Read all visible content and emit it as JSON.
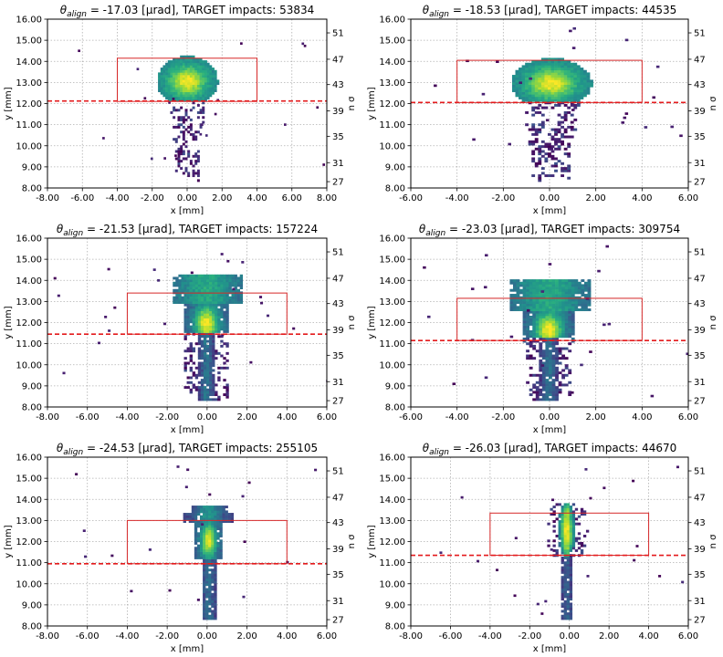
{
  "chart_data": [
    {
      "type": "heatmap",
      "title": {
        "prefix": "θ",
        "subscript": "align",
        "text": " =  -17.03 [μrad],    TARGET impacts: 53834"
      },
      "xlabel": "x [mm]",
      "ylabel": "y [mm]",
      "y2label": "n σ",
      "xlim": [
        -8,
        8
      ],
      "ylim": [
        8,
        16
      ],
      "xticks": [
        -8,
        -6,
        -4,
        -2,
        0,
        2,
        4,
        6,
        8
      ],
      "xticklabels": [
        "-8.00",
        "-6.00",
        "-4.00",
        "-2.00",
        "0.00",
        "2.00",
        "4.00",
        "6.00",
        "8.00"
      ],
      "yticks": [
        8,
        9,
        10,
        11,
        12,
        13,
        14,
        15,
        16
      ],
      "yticklabels": [
        "8.00",
        "9.00",
        "10.00",
        "11.00",
        "12.00",
        "13.00",
        "14.00",
        "15.00",
        "16.00"
      ],
      "y2ticks": [
        27,
        31,
        35,
        39,
        43,
        47,
        51
      ],
      "y2_values_at_y": [
        8.3,
        9.2,
        10.45,
        11.65,
        12.9,
        14.1,
        15.35
      ],
      "grid": true,
      "target_box": {
        "x": [
          -4.0,
          4.0
        ],
        "y": [
          12.1,
          14.15
        ]
      },
      "dashed_line_y": 12.12,
      "beam": {
        "x_center": -0.05,
        "x_halfwidth": 1.75,
        "core_y": 13.0,
        "top_y": 14.3,
        "tail_bottom": 8.4,
        "tail_halfwidth": 1.0,
        "style": "blob",
        "n": 53834
      }
    },
    {
      "type": "heatmap",
      "title": {
        "prefix": "θ",
        "subscript": "align",
        "text": " =  -18.53 [μrad],    TARGET impacts: 44535"
      },
      "xlabel": "x [mm]",
      "ylabel": "y [mm]",
      "y2label": "n σ",
      "xlim": [
        -6,
        6
      ],
      "ylim": [
        8,
        16
      ],
      "xticks": [
        -6,
        -4,
        -2,
        0,
        2,
        4,
        6
      ],
      "xticklabels": [
        "-6.00",
        "-4.00",
        "-2.00",
        "0.00",
        "2.00",
        "4.00",
        "6.00"
      ],
      "yticks": [
        8,
        9,
        10,
        11,
        12,
        13,
        14,
        15,
        16
      ],
      "yticklabels": [
        "8.00",
        "9.00",
        "10.00",
        "11.00",
        "12.00",
        "13.00",
        "14.00",
        "15.00",
        "16.00"
      ],
      "y2ticks": [
        27,
        31,
        35,
        39,
        43,
        47,
        51
      ],
      "y2_values_at_y": [
        8.3,
        9.2,
        10.45,
        11.65,
        12.9,
        14.1,
        15.35
      ],
      "grid": true,
      "target_box": {
        "x": [
          -4.0,
          4.0
        ],
        "y": [
          12.05,
          14.05
        ]
      },
      "dashed_line_y": 12.05,
      "beam": {
        "x_center": 0.0,
        "x_halfwidth": 1.75,
        "core_y": 12.9,
        "top_y": 14.2,
        "tail_bottom": 8.4,
        "tail_halfwidth": 1.2,
        "style": "blob",
        "n": 44535
      }
    },
    {
      "type": "heatmap",
      "title": {
        "prefix": "θ",
        "subscript": "align",
        "text": " =  -21.53 [μrad],    TARGET impacts: 157224"
      },
      "xlabel": "x [mm]",
      "ylabel": "y [mm]",
      "y2label": "n σ",
      "xlim": [
        -8,
        6
      ],
      "ylim": [
        8,
        16
      ],
      "xticks": [
        -8,
        -6,
        -4,
        -2,
        0,
        2,
        4,
        6
      ],
      "xticklabels": [
        "-8.00",
        "-6.00",
        "-4.00",
        "-2.00",
        "0.00",
        "2.00",
        "4.00",
        "6.00"
      ],
      "yticks": [
        8,
        9,
        10,
        11,
        12,
        13,
        14,
        15,
        16
      ],
      "yticklabels": [
        "8.00",
        "9.00",
        "10.00",
        "11.00",
        "12.00",
        "13.00",
        "14.00",
        "15.00",
        "16.00"
      ],
      "y2ticks": [
        27,
        31,
        35,
        39,
        43,
        47,
        51
      ],
      "y2_values_at_y": [
        8.3,
        9.2,
        10.45,
        11.65,
        12.9,
        14.1,
        15.35
      ],
      "grid": true,
      "target_box": {
        "x": [
          -4.0,
          4.0
        ],
        "y": [
          11.45,
          13.4
        ]
      },
      "dashed_line_y": 11.45,
      "beam": {
        "x_center": -0.1,
        "x_halfwidth": 1.75,
        "core_y": 11.9,
        "top_y": 14.2,
        "tail_bottom": 8.3,
        "tail_halfwidth": 0.45,
        "style": "mushroom",
        "n": 157224
      }
    },
    {
      "type": "heatmap",
      "title": {
        "prefix": "θ",
        "subscript": "align",
        "text": " =  -23.03 [μrad],    TARGET impacts: 309754"
      },
      "xlabel": "x [mm]",
      "ylabel": "y [mm]",
      "y2label": "n σ",
      "xlim": [
        -6,
        6
      ],
      "ylim": [
        8,
        16
      ],
      "xticks": [
        -6,
        -4,
        -2,
        0,
        2,
        4,
        6
      ],
      "xticklabels": [
        "-6.00",
        "-4.00",
        "-2.00",
        "0.00",
        "2.00",
        "4.00",
        "6.00"
      ],
      "yticks": [
        8,
        9,
        10,
        11,
        12,
        13,
        14,
        15,
        16
      ],
      "yticklabels": [
        "8.00",
        "9.00",
        "10.00",
        "11.00",
        "12.00",
        "13.00",
        "14.00",
        "15.00",
        "16.00"
      ],
      "y2ticks": [
        27,
        31,
        35,
        39,
        43,
        47,
        51
      ],
      "y2_values_at_y": [
        8.3,
        9.2,
        10.45,
        11.65,
        12.9,
        14.1,
        15.35
      ],
      "grid": true,
      "target_box": {
        "x": [
          -4.0,
          4.0
        ],
        "y": [
          11.15,
          13.15
        ]
      },
      "dashed_line_y": 11.15,
      "beam": {
        "x_center": -0.1,
        "x_halfwidth": 1.75,
        "core_y": 11.6,
        "top_y": 14.0,
        "tail_bottom": 8.3,
        "tail_halfwidth": 0.4,
        "style": "mushroom",
        "n": 309754
      }
    },
    {
      "type": "heatmap",
      "title": {
        "prefix": "θ",
        "subscript": "align",
        "text": " =  -24.53 [μrad],    TARGET impacts: 255105"
      },
      "xlabel": "x [mm]",
      "ylabel": "y [mm]",
      "y2label": "n σ",
      "xlim": [
        -8,
        6
      ],
      "ylim": [
        8,
        16
      ],
      "xticks": [
        -8,
        -6,
        -4,
        -2,
        0,
        2,
        4,
        6
      ],
      "xticklabels": [
        "-8.00",
        "-6.00",
        "-4.00",
        "-2.00",
        "0.00",
        "2.00",
        "4.00",
        "6.00"
      ],
      "yticks": [
        8,
        9,
        10,
        11,
        12,
        13,
        14,
        15,
        16
      ],
      "yticklabels": [
        "8.00",
        "9.00",
        "10.00",
        "11.00",
        "12.00",
        "13.00",
        "14.00",
        "15.00",
        "16.00"
      ],
      "y2ticks": [
        27,
        31,
        35,
        39,
        43,
        47,
        51
      ],
      "y2_values_at_y": [
        8.3,
        9.2,
        10.45,
        11.65,
        12.9,
        14.1,
        15.35
      ],
      "grid": true,
      "target_box": {
        "x": [
          -4.0,
          4.0
        ],
        "y": [
          10.95,
          13.0
        ]
      },
      "dashed_line_y": 10.95,
      "beam": {
        "x_center": 0.0,
        "x_halfwidth": 1.3,
        "core_y": 12.0,
        "top_y": 13.6,
        "tail_bottom": 8.3,
        "tail_halfwidth": 0.35,
        "style": "narrow",
        "n": 255105
      }
    },
    {
      "type": "heatmap",
      "title": {
        "prefix": "θ",
        "subscript": "align",
        "text": " =  -26.03 [μrad],    TARGET impacts: 44670"
      },
      "xlabel": "x [mm]",
      "ylabel": "y [mm]",
      "y2label": "n σ",
      "xlim": [
        -8,
        6
      ],
      "ylim": [
        8,
        16
      ],
      "xticks": [
        -8,
        -6,
        -4,
        -2,
        0,
        2,
        4,
        6
      ],
      "xticklabels": [
        "-8.00",
        "-6.00",
        "-4.00",
        "-2.00",
        "0.00",
        "2.00",
        "4.00",
        "6.00"
      ],
      "yticks": [
        8,
        9,
        10,
        11,
        12,
        13,
        14,
        15,
        16
      ],
      "yticklabels": [
        "8.00",
        "9.00",
        "10.00",
        "11.00",
        "12.00",
        "13.00",
        "14.00",
        "15.00",
        "16.00"
      ],
      "y2ticks": [
        27,
        31,
        35,
        39,
        43,
        47,
        51
      ],
      "y2_values_at_y": [
        8.3,
        9.2,
        10.45,
        11.65,
        12.9,
        14.1,
        15.35
      ],
      "grid": true,
      "target_box": {
        "x": [
          -4.0,
          4.0
        ],
        "y": [
          11.35,
          13.35
        ]
      },
      "dashed_line_y": 11.35,
      "beam": {
        "x_center": -0.2,
        "x_halfwidth": 0.45,
        "core_y": 12.2,
        "top_y": 13.8,
        "tail_bottom": 8.3,
        "tail_halfwidth": 0.3,
        "style": "spindle",
        "n": 44670
      }
    }
  ]
}
